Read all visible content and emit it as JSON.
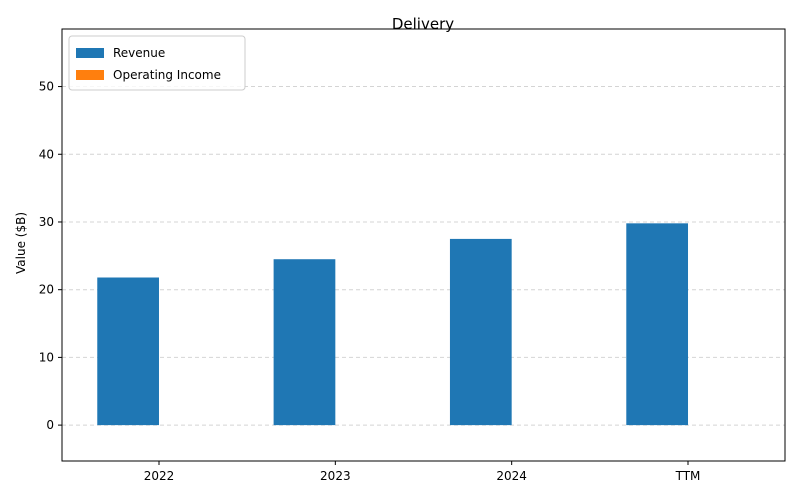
{
  "chart_data": {
    "type": "bar",
    "title": "Delivery",
    "xlabel": "",
    "ylabel": "Value ($B)",
    "categories": [
      "2022",
      "2023",
      "2024",
      "TTM"
    ],
    "series": [
      {
        "name": "Revenue",
        "color": "#1f77b4",
        "values": [
          21.8,
          24.5,
          27.5,
          29.8
        ]
      },
      {
        "name": "Operating Income",
        "color": "#ff7f0e",
        "values": [
          0,
          0,
          0,
          0
        ]
      }
    ],
    "ylim": [
      -5.3,
      58.5
    ],
    "yticks": [
      0,
      10,
      20,
      30,
      40,
      50
    ],
    "grid": true,
    "legend_position": "top-left"
  }
}
